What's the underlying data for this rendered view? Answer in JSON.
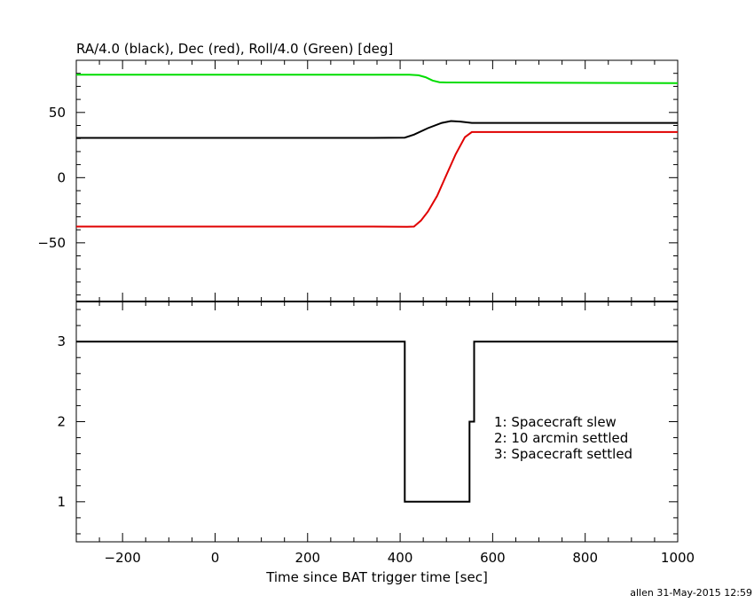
{
  "chart_data": [
    {
      "type": "line",
      "title": "RA/4.0 (black), Dec (red), Roll/4.0 (Green) [deg]",
      "xlim": [
        -300,
        1000
      ],
      "ylim": [
        -95,
        90
      ],
      "yticks": [
        -50,
        0,
        50
      ],
      "grid": false,
      "series": [
        {
          "name": "RA/4.0 (black)",
          "color": "#000000",
          "points": [
            [
              -300,
              30.5
            ],
            [
              340,
              30.5
            ],
            [
              410,
              30.7
            ],
            [
              430,
              33
            ],
            [
              460,
              38
            ],
            [
              490,
              42
            ],
            [
              510,
              43.4
            ],
            [
              530,
              43
            ],
            [
              555,
              42
            ],
            [
              1000,
              42
            ]
          ]
        },
        {
          "name": "Dec (red)",
          "color": "#e00000",
          "points": [
            [
              -300,
              -37.5
            ],
            [
              340,
              -37.5
            ],
            [
              415,
              -37.7
            ],
            [
              430,
              -37.5
            ],
            [
              445,
              -33
            ],
            [
              460,
              -26
            ],
            [
              480,
              -14
            ],
            [
              500,
              2
            ],
            [
              520,
              18
            ],
            [
              540,
              31
            ],
            [
              555,
              35
            ],
            [
              1000,
              35
            ]
          ]
        },
        {
          "name": "Roll/4.0 (Green)",
          "color": "#00dd00",
          "points": [
            [
              -300,
              79
            ],
            [
              340,
              79
            ],
            [
              420,
              79
            ],
            [
              440,
              78.5
            ],
            [
              455,
              77
            ],
            [
              470,
              74.5
            ],
            [
              485,
              73.2
            ],
            [
              500,
              73
            ],
            [
              1000,
              72.5
            ]
          ]
        }
      ]
    },
    {
      "type": "line",
      "xlabel": "Time since BAT trigger time [sec]",
      "xlim": [
        -300,
        1000
      ],
      "xticks": [
        -200,
        0,
        200,
        400,
        600,
        800,
        1000
      ],
      "ylim": [
        0.5,
        3.5
      ],
      "yticks": [
        1,
        2,
        3
      ],
      "grid": false,
      "series": [
        {
          "color": "#000000",
          "points": [
            [
              -300,
              3
            ],
            [
              410,
              3
            ],
            [
              410,
              1
            ],
            [
              550,
              1
            ],
            [
              550,
              2
            ],
            [
              560,
              2
            ],
            [
              560,
              3
            ],
            [
              1000,
              3
            ]
          ]
        }
      ],
      "annotations": [
        "1: Spacecraft slew",
        "2: 10 arcmin settled",
        "3: Spacecraft settled"
      ]
    }
  ],
  "footer": "allen 31-May-2015 12:59"
}
